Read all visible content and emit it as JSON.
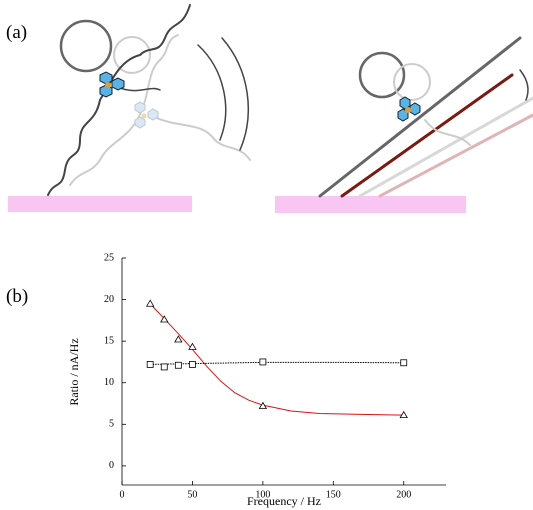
{
  "panels": [
    "(a)",
    "(b)"
  ],
  "chart_data": {
    "type": "scatter",
    "x_label": "Frequency / Hz",
    "y_label": "Ratio / nA/Hz",
    "xlim": [
      0,
      230
    ],
    "ylim": [
      -2.3,
      25
    ],
    "xticks": [
      0,
      50,
      100,
      150,
      200
    ],
    "yticks": [
      0,
      5,
      10,
      15,
      20,
      25
    ],
    "series": [
      {
        "marker": "triangle",
        "color": "#000000",
        "x": [
          20,
          30,
          40,
          50,
          100,
          200
        ],
        "values": [
          19.5,
          17.6,
          15.2,
          14.3,
          7.2,
          6.1
        ]
      },
      {
        "marker": "square",
        "color": "#000000",
        "x": [
          20,
          30,
          40,
          50,
          100,
          200
        ],
        "values": [
          12.2,
          11.9,
          12.1,
          12.2,
          12.5,
          12.4
        ]
      }
    ],
    "lines": [
      {
        "color": "#e01010",
        "dash": "none",
        "x": [
          20,
          30,
          40,
          50,
          60,
          70,
          80,
          90,
          100,
          120,
          140,
          170,
          200
        ],
        "values": [
          19.5,
          17.7,
          15.9,
          14.0,
          12.0,
          10.2,
          8.8,
          7.9,
          7.3,
          6.6,
          6.3,
          6.2,
          6.1
        ]
      },
      {
        "color": "#000000",
        "dash": "1.5 1",
        "x": [
          20,
          50,
          100,
          150,
          200
        ],
        "values": [
          12.2,
          12.3,
          12.45,
          12.45,
          12.4
        ]
      }
    ]
  }
}
